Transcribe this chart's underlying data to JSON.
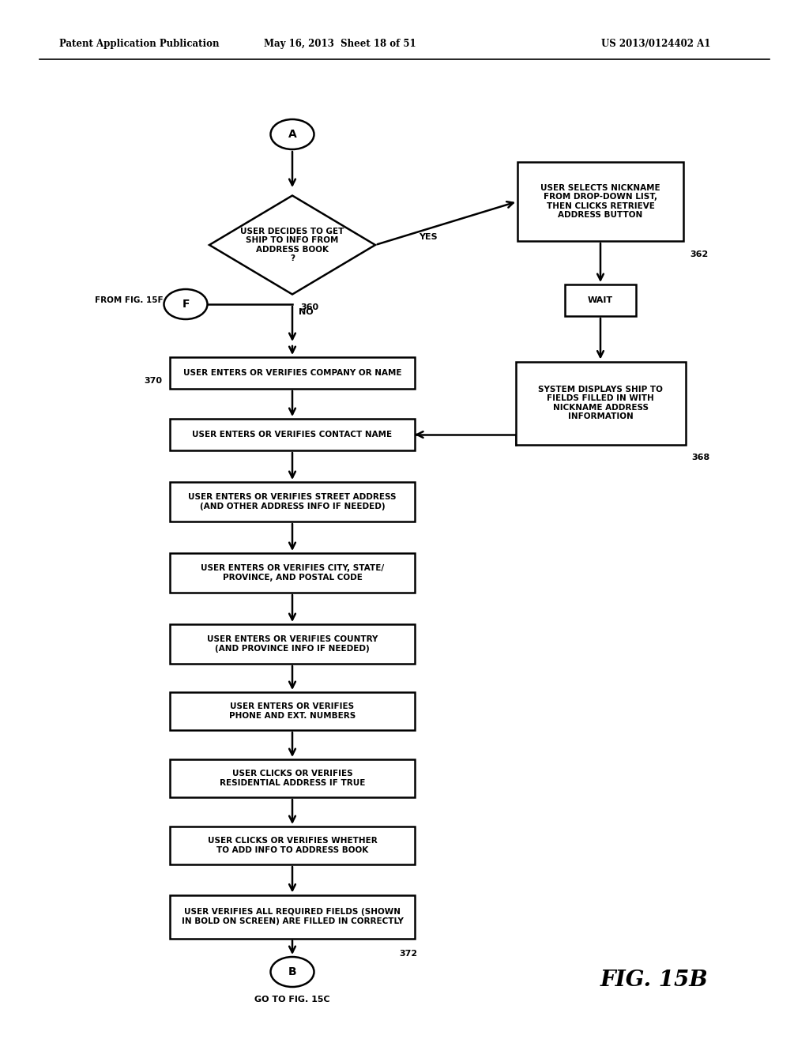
{
  "title_left": "Patent Application Publication",
  "title_mid": "May 16, 2013  Sheet 18 of 51",
  "title_right": "US 2013/0124402 A1",
  "fig_label": "FIG. 15B",
  "background_color": "#ffffff"
}
